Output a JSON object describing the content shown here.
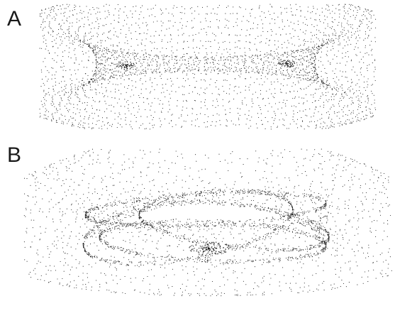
{
  "panels": [
    {
      "id": "A",
      "label": "A"
    },
    {
      "id": "B",
      "label": "B"
    }
  ],
  "style": {
    "dot_color": "#1a1a1a",
    "background": "#ffffff",
    "label_color": "#1a1a1a"
  }
}
